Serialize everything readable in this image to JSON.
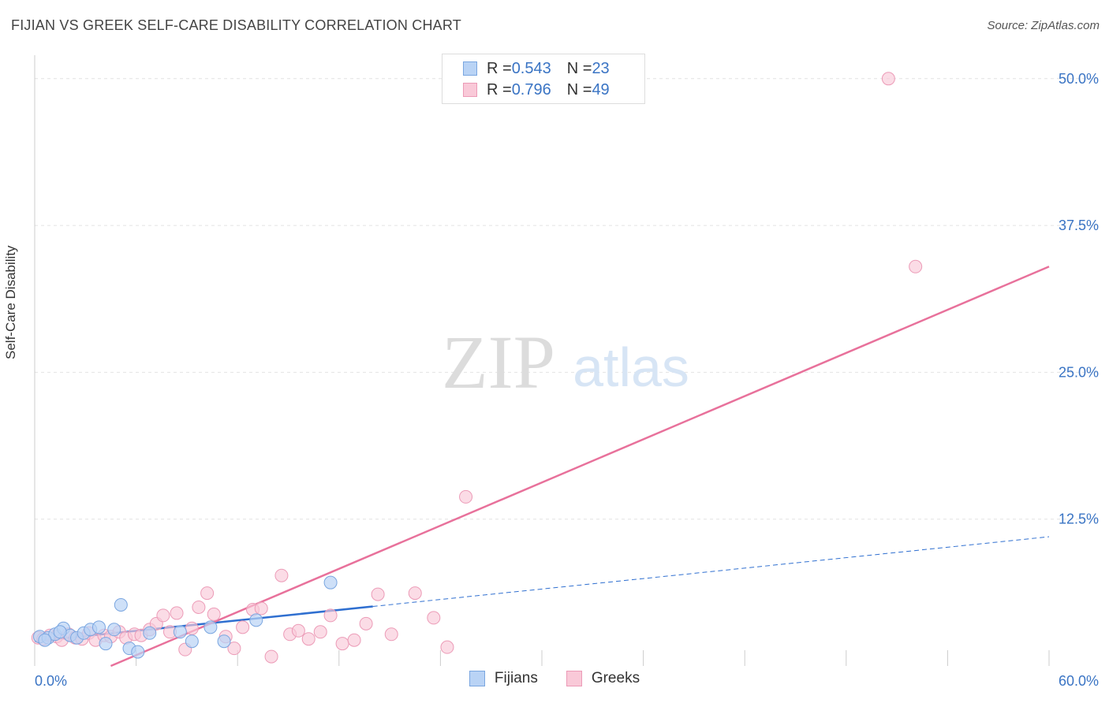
{
  "header": {
    "title": "FIJIAN VS GREEK SELF-CARE DISABILITY CORRELATION CHART",
    "source": "Source: ZipAtlas.com"
  },
  "watermark": {
    "zip": "ZIP",
    "atlas": "atlas"
  },
  "legend": {
    "fijians": {
      "r_label": "R = ",
      "r_value": "0.543",
      "n_label": "N = ",
      "n_value": "23"
    },
    "greeks": {
      "r_label": "R = ",
      "r_value": "0.796",
      "n_label": "N = ",
      "n_value": "49"
    }
  },
  "colors": {
    "fijians_fill": "#b9d3f5",
    "fijians_stroke": "#7aa6e0",
    "fijians_line": "#2f6fd0",
    "greeks_fill": "#f9c9d8",
    "greeks_stroke": "#ec9bb7",
    "greeks_line": "#e8719b",
    "tick_label": "#3a74c4"
  },
  "chart_data": {
    "type": "scatter",
    "title": "FIJIAN VS GREEK SELF-CARE DISABILITY CORRELATION CHART",
    "xlabel": "",
    "ylabel": "Self-Care Disability",
    "xlim": [
      0,
      60
    ],
    "ylim": [
      0,
      52
    ],
    "x_tick_labels": [
      "0.0%",
      "60.0%"
    ],
    "y_ticks": [
      12.5,
      25.0,
      37.5,
      50.0
    ],
    "y_tick_labels": [
      "12.5%",
      "25.0%",
      "37.5%",
      "50.0%"
    ],
    "grid": true,
    "legend_position": "top-center",
    "series": [
      {
        "name": "Fijians",
        "x": [
          0.3,
          0.8,
          1.2,
          1.7,
          2.1,
          2.5,
          2.9,
          3.3,
          3.8,
          4.2,
          4.7,
          5.1,
          5.6,
          6.1,
          6.8,
          8.6,
          9.3,
          10.4,
          11.2,
          13.1,
          17.5,
          0.6,
          1.5
        ],
        "y": [
          2.5,
          2.4,
          2.7,
          3.2,
          2.6,
          2.4,
          2.8,
          3.1,
          3.3,
          1.9,
          3.1,
          5.2,
          1.5,
          1.2,
          2.8,
          2.9,
          2.1,
          3.3,
          2.1,
          3.9,
          7.1,
          2.2,
          2.9
        ],
        "trend": {
          "x0": 0,
          "y0": 2.1,
          "x1": 60,
          "y1": 11.0,
          "solid_until_x": 20
        }
      },
      {
        "name": "Greeks",
        "x": [
          0.2,
          0.5,
          0.9,
          1.3,
          1.6,
          2.0,
          2.4,
          2.8,
          3.2,
          3.6,
          4.1,
          4.5,
          5.0,
          5.4,
          5.9,
          6.3,
          6.8,
          7.2,
          7.6,
          8.0,
          8.4,
          8.9,
          9.3,
          9.7,
          10.2,
          10.6,
          11.3,
          11.8,
          12.3,
          12.9,
          13.4,
          14.0,
          14.6,
          15.1,
          15.6,
          16.2,
          16.9,
          17.5,
          18.2,
          18.9,
          19.6,
          20.3,
          21.1,
          22.5,
          23.6,
          24.4,
          25.5,
          50.5,
          52.1
        ],
        "y": [
          2.4,
          2.3,
          2.6,
          2.5,
          2.2,
          2.7,
          2.4,
          2.3,
          2.8,
          2.2,
          2.6,
          2.5,
          2.9,
          2.4,
          2.7,
          2.6,
          3.1,
          3.6,
          4.3,
          2.9,
          4.5,
          1.4,
          3.2,
          5.0,
          6.2,
          4.4,
          2.5,
          1.5,
          3.3,
          4.8,
          4.9,
          0.8,
          7.7,
          2.7,
          3.0,
          2.3,
          2.9,
          4.3,
          1.9,
          2.2,
          3.6,
          6.1,
          2.7,
          6.2,
          4.1,
          1.6,
          14.4,
          50.0,
          34.0
        ],
        "trend": {
          "x0": 4.5,
          "y0": 0,
          "x1": 60,
          "y1": 34.0
        }
      }
    ]
  },
  "bottom_legend": {
    "fijians": "Fijians",
    "greeks": "Greeks"
  }
}
